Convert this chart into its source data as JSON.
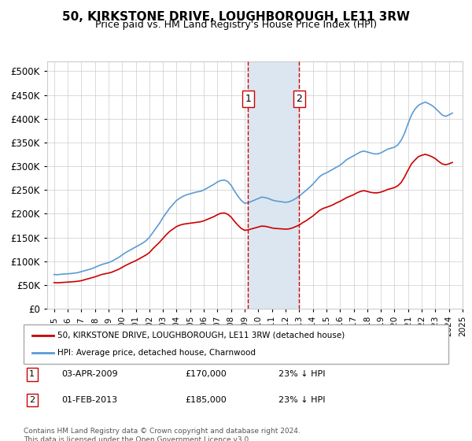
{
  "title": "50, KIRKSTONE DRIVE, LOUGHBOROUGH, LE11 3RW",
  "subtitle": "Price paid vs. HM Land Registry's House Price Index (HPI)",
  "red_label": "50, KIRKSTONE DRIVE, LOUGHBOROUGH, LE11 3RW (detached house)",
  "blue_label": "HPI: Average price, detached house, Charnwood",
  "marker1_date": "03-APR-2009",
  "marker1_price": 170000,
  "marker1_hpi": "23% ↓ HPI",
  "marker2_date": "01-FEB-2013",
  "marker2_price": 185000,
  "marker2_hpi": "23% ↓ HPI",
  "footer": "Contains HM Land Registry data © Crown copyright and database right 2024.\nThis data is licensed under the Open Government Licence v3.0.",
  "red_color": "#cc0000",
  "blue_color": "#5b9bd5",
  "highlight_color": "#dce6f1",
  "marker_color": "#cc0000",
  "ylim": [
    0,
    520000
  ],
  "yticks": [
    0,
    50000,
    100000,
    150000,
    200000,
    250000,
    300000,
    350000,
    400000,
    450000,
    500000
  ],
  "ytick_labels": [
    "£0",
    "£50K",
    "£100K",
    "£150K",
    "£200K",
    "£250K",
    "£300K",
    "£350K",
    "£400K",
    "£450K",
    "£500K"
  ],
  "hpi_years": [
    1995,
    1995.25,
    1995.5,
    1995.75,
    1996,
    1996.25,
    1996.5,
    1996.75,
    1997,
    1997.25,
    1997.5,
    1997.75,
    1998,
    1998.25,
    1998.5,
    1998.75,
    1999,
    1999.25,
    1999.5,
    1999.75,
    2000,
    2000.25,
    2000.5,
    2000.75,
    2001,
    2001.25,
    2001.5,
    2001.75,
    2002,
    2002.25,
    2002.5,
    2002.75,
    2003,
    2003.25,
    2003.5,
    2003.75,
    2004,
    2004.25,
    2004.5,
    2004.75,
    2005,
    2005.25,
    2005.5,
    2005.75,
    2006,
    2006.25,
    2006.5,
    2006.75,
    2007,
    2007.25,
    2007.5,
    2007.75,
    2008,
    2008.25,
    2008.5,
    2008.75,
    2009,
    2009.25,
    2009.5,
    2009.75,
    2010,
    2010.25,
    2010.5,
    2010.75,
    2011,
    2011.25,
    2011.5,
    2011.75,
    2012,
    2012.25,
    2012.5,
    2012.75,
    2013,
    2013.25,
    2013.5,
    2013.75,
    2014,
    2014.25,
    2014.5,
    2014.75,
    2015,
    2015.25,
    2015.5,
    2015.75,
    2016,
    2016.25,
    2016.5,
    2016.75,
    2017,
    2017.25,
    2017.5,
    2017.75,
    2018,
    2018.25,
    2018.5,
    2018.75,
    2019,
    2019.25,
    2019.5,
    2019.75,
    2020,
    2020.25,
    2020.5,
    2020.75,
    2021,
    2021.25,
    2021.5,
    2021.75,
    2022,
    2022.25,
    2022.5,
    2022.75,
    2023,
    2023.25,
    2023.5,
    2023.75,
    2024,
    2024.25
  ],
  "hpi_values": [
    72000,
    71500,
    72500,
    73000,
    73500,
    74000,
    75000,
    76000,
    78000,
    80000,
    82000,
    84000,
    87000,
    90000,
    93000,
    95000,
    97000,
    100000,
    104000,
    108000,
    113000,
    118000,
    122000,
    126000,
    130000,
    134000,
    138000,
    143000,
    150000,
    160000,
    170000,
    180000,
    192000,
    202000,
    212000,
    220000,
    228000,
    233000,
    237000,
    240000,
    242000,
    244000,
    246000,
    247000,
    250000,
    254000,
    258000,
    262000,
    267000,
    270000,
    271000,
    268000,
    260000,
    248000,
    237000,
    228000,
    222000,
    223000,
    226000,
    229000,
    232000,
    235000,
    234000,
    232000,
    229000,
    227000,
    226000,
    225000,
    224000,
    225000,
    228000,
    232000,
    237000,
    243000,
    249000,
    255000,
    262000,
    270000,
    278000,
    283000,
    286000,
    290000,
    294000,
    298000,
    302000,
    308000,
    314000,
    318000,
    322000,
    326000,
    330000,
    332000,
    330000,
    328000,
    326000,
    326000,
    328000,
    332000,
    336000,
    338000,
    340000,
    345000,
    355000,
    370000,
    390000,
    408000,
    420000,
    428000,
    432000,
    435000,
    432000,
    428000,
    422000,
    415000,
    408000,
    405000,
    408000,
    412000
  ],
  "red_years": [
    1995,
    1995.25,
    1995.5,
    1995.75,
    1996,
    1996.25,
    1996.5,
    1996.75,
    1997,
    1997.25,
    1997.5,
    1997.75,
    1998,
    1998.25,
    1998.5,
    1998.75,
    1999,
    1999.25,
    1999.5,
    1999.75,
    2000,
    2000.25,
    2000.5,
    2000.75,
    2001,
    2001.25,
    2001.5,
    2001.75,
    2002,
    2002.25,
    2002.5,
    2002.75,
    2003,
    2003.25,
    2003.5,
    2003.75,
    2004,
    2004.25,
    2004.5,
    2004.75,
    2005,
    2005.25,
    2005.5,
    2005.75,
    2006,
    2006.25,
    2006.5,
    2006.75,
    2007,
    2007.25,
    2007.5,
    2007.75,
    2008,
    2008.25,
    2008.5,
    2008.75,
    2009,
    2009.25,
    2009.5,
    2009.75,
    2010,
    2010.25,
    2010.5,
    2010.75,
    2011,
    2011.25,
    2011.5,
    2011.75,
    2012,
    2012.25,
    2012.5,
    2012.75,
    2013,
    2013.25,
    2013.5,
    2013.75,
    2014,
    2014.25,
    2014.5,
    2014.75,
    2015,
    2015.25,
    2015.5,
    2015.75,
    2016,
    2016.25,
    2016.5,
    2016.75,
    2017,
    2017.25,
    2017.5,
    2017.75,
    2018,
    2018.25,
    2018.5,
    2018.75,
    2019,
    2019.25,
    2019.5,
    2019.75,
    2020,
    2020.25,
    2020.5,
    2020.75,
    2021,
    2021.25,
    2021.5,
    2021.75,
    2022,
    2022.25,
    2022.5,
    2022.75,
    2023,
    2023.25,
    2023.5,
    2023.75,
    2024,
    2024.25
  ],
  "red_values": [
    55000,
    54500,
    55000,
    55500,
    56000,
    56500,
    57000,
    57800,
    59000,
    61000,
    63000,
    65000,
    67000,
    69500,
    72000,
    73500,
    75000,
    77000,
    80000,
    83000,
    87000,
    91000,
    94500,
    98000,
    101000,
    105000,
    109000,
    113000,
    118000,
    126000,
    133000,
    140000,
    148000,
    156000,
    163000,
    168000,
    173000,
    176000,
    178000,
    179000,
    180000,
    181000,
    182000,
    183000,
    185000,
    188000,
    191000,
    194000,
    198000,
    201000,
    201500,
    199000,
    193000,
    184000,
    176000,
    169000,
    165000,
    166000,
    168000,
    170000,
    172000,
    174000,
    173500,
    172000,
    170000,
    169000,
    168500,
    168000,
    167500,
    168000,
    170000,
    173000,
    176000,
    181000,
    185000,
    190000,
    195000,
    201000,
    207000,
    211000,
    213500,
    216000,
    219000,
    223000,
    226000,
    230000,
    234000,
    237000,
    240000,
    244000,
    247000,
    248500,
    247000,
    245000,
    244000,
    244000,
    245500,
    248000,
    251000,
    253000,
    255000,
    259000,
    266000,
    278000,
    292000,
    305000,
    313000,
    320000,
    323000,
    325000,
    323000,
    320000,
    316000,
    310000,
    305000,
    303000,
    305000,
    308000
  ],
  "marker1_x": 2009.25,
  "marker2_x": 2013.0,
  "xlim_left": 1994.5,
  "xlim_right": 2024.8,
  "xtick_years": [
    1995,
    1996,
    1997,
    1998,
    1999,
    2000,
    2001,
    2002,
    2003,
    2004,
    2005,
    2006,
    2007,
    2008,
    2009,
    2010,
    2011,
    2012,
    2013,
    2014,
    2015,
    2016,
    2017,
    2018,
    2019,
    2020,
    2021,
    2022,
    2023,
    2024,
    2025
  ]
}
